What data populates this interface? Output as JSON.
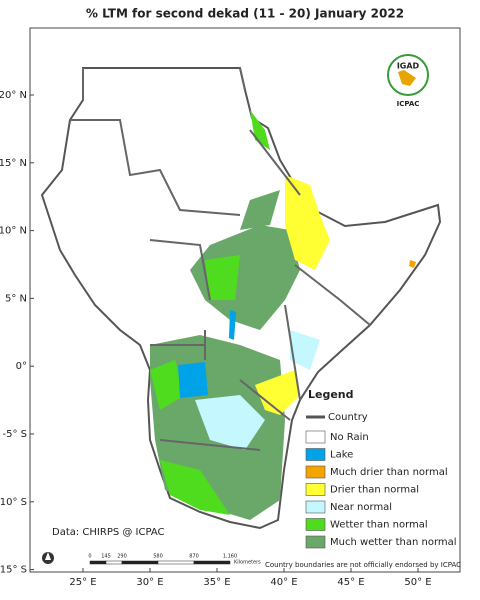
{
  "header": {
    "title": "% LTM  for  second  dekad (11 - 20)  January 2022"
  },
  "logo": {
    "name": "IGAD",
    "org": "ICPAC"
  },
  "map": {
    "lat_labels": [
      "20° N",
      "15° N",
      "10° N",
      "5° N",
      "0°",
      "-5° S",
      "-10° S",
      "-15° S"
    ],
    "lon_labels": [
      "25° E",
      "30° E",
      "35° E",
      "40° E",
      "45° E",
      "50° E"
    ]
  },
  "legend": {
    "title": "Legend",
    "country": "Country",
    "items": [
      {
        "label": "No Rain",
        "color": "#ffffff"
      },
      {
        "label": "Lake",
        "color": "#00a2e8"
      },
      {
        "label": "Much drier than normal",
        "color": "#f5a300"
      },
      {
        "label": "Drier than normal",
        "color": "#ffff33"
      },
      {
        "label": "Near normal",
        "color": "#c4f7ff"
      },
      {
        "label": "Wetter than normal",
        "color": "#4fdc1f"
      },
      {
        "label": "Much wetter than normal",
        "color": "#6aa86a"
      }
    ]
  },
  "source": "Data: CHIRPS @ ICPAC",
  "scale_bar": {
    "labels": [
      "0",
      "145",
      "290",
      "580",
      "870",
      "1,160"
    ],
    "unit": "Kilometers"
  },
  "disclaimer": "Country boundaries are not officially endorsed by ICPAC"
}
